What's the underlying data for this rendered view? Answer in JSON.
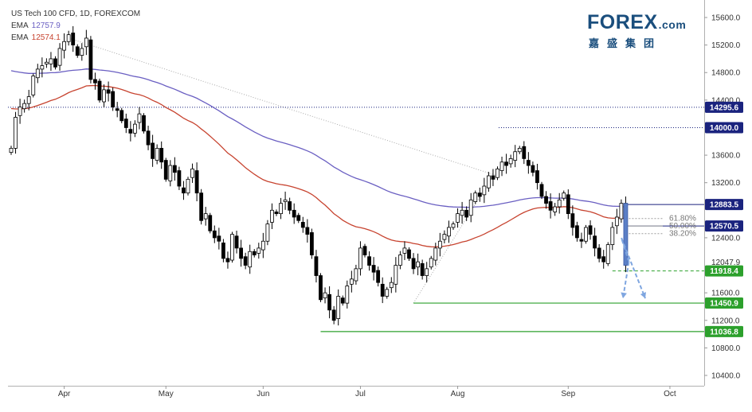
{
  "legend": {
    "title": "US Tech 100 CFD, 1D, FOREXCOM",
    "ema1_label": "EMA",
    "ema1_value": "12757.9",
    "ema2_label": "EMA",
    "ema2_value": "12574.1"
  },
  "brand": {
    "name_fx": "FOREX",
    "name_com": ".com",
    "subtitle": "嘉盛集团"
  },
  "colors": {
    "ema_fast": "#c7432f",
    "ema_slow": "#6a5fc2",
    "support": "#2ca02c",
    "resistance_line": "#1a237e",
    "fib": "#9e9e9e",
    "projection": "#7fa6e0",
    "candle_up": "#ffffff",
    "candle_down": "#000000"
  },
  "chart_data": {
    "type": "candlestick",
    "title": "US Tech 100 CFD, 1D, FOREXCOM",
    "ylim": [
      10200,
      15800
    ],
    "y_ticks": [
      "15600.0",
      "15200.0",
      "14800.0",
      "14400.0",
      "13600.0",
      "13200.0",
      "12400.0",
      "11600.0",
      "11200.0",
      "10800.0",
      "10400.0"
    ],
    "x_ticks": [
      "Apr",
      "May",
      "Jun",
      "Jul",
      "Aug",
      "Sep",
      "Oct"
    ],
    "price_tags": [
      {
        "label": "14295.6",
        "value": 14295.6,
        "color": "#1a237e"
      },
      {
        "label": "14000.0",
        "value": 14000.0,
        "color": "#1a237e"
      },
      {
        "label": "12883.5",
        "value": 12883.5,
        "color": "#1a237e"
      },
      {
        "label": "12570.5",
        "value": 12570.5,
        "color": "#1a237e"
      },
      {
        "label": "12047.9",
        "value": 12047.9,
        "color": "none"
      },
      {
        "label": "11918.4",
        "value": 11918.4,
        "color": "#2ca02c"
      },
      {
        "label": "11450.9",
        "value": 11450.9,
        "color": "#2ca02c"
      },
      {
        "label": "11036.8",
        "value": 11036.8,
        "color": "#2ca02c"
      }
    ],
    "fib_labels": [
      "61.80%",
      "50.00%",
      "38.20%"
    ],
    "close": [
      13700,
      14150,
      14300,
      14350,
      14450,
      14750,
      14850,
      14900,
      14950,
      15000,
      14880,
      15150,
      15250,
      15350,
      15200,
      15050,
      15150,
      15300,
      14700,
      14650,
      14400,
      14550,
      14500,
      14300,
      14250,
      14100,
      14000,
      13920,
      14050,
      14200,
      13950,
      13750,
      13550,
      13700,
      13500,
      13250,
      13450,
      13350,
      13150,
      13050,
      13250,
      13400,
      13050,
      12650,
      12750,
      12500,
      12400,
      12350,
      12100,
      12050,
      12450,
      12250,
      12100,
      12000,
      12200,
      12150,
      12250,
      12350,
      12600,
      12800,
      12750,
      12900,
      12950,
      12800,
      12700,
      12650,
      12550,
      12450,
      12150,
      11850,
      11500,
      11600,
      11350,
      11200,
      11550,
      11450,
      11700,
      11800,
      11950,
      12250,
      12150,
      12000,
      11900,
      11750,
      11550,
      11650,
      11750,
      12000,
      12150,
      12250,
      12100,
      11950,
      12050,
      11850,
      11950,
      12100,
      12250,
      12350,
      12450,
      12550,
      12600,
      12750,
      12800,
      12700,
      12950,
      13050,
      13000,
      13150,
      13300,
      13250,
      13400,
      13500,
      13450,
      13550,
      13650,
      13700,
      13550,
      13450,
      13350,
      13200,
      13000,
      12900,
      12800,
      12850,
      12950,
      13050,
      12750,
      12550,
      12400,
      12350,
      12550,
      12450,
      12250,
      12100,
      12050,
      12300,
      12550,
      12700,
      12900,
      12000
    ],
    "ema_fast_label": "EMA 12574.1",
    "ema_slow_label": "EMA 12757.9"
  }
}
